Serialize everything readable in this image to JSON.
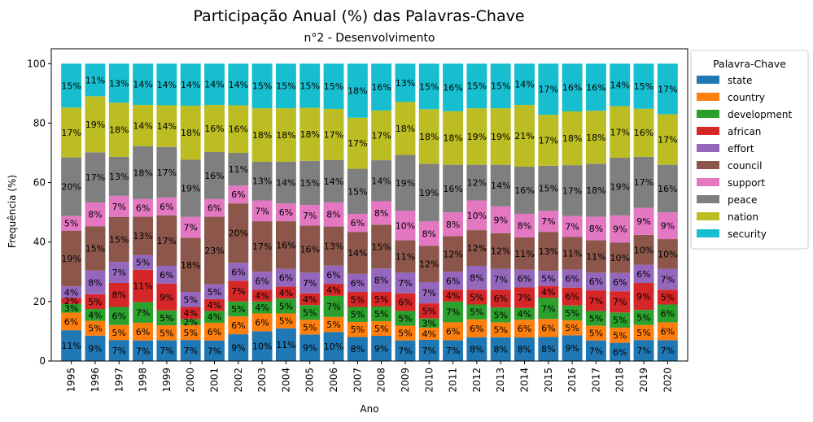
{
  "chart_data": {
    "type": "bar",
    "stacked": true,
    "title": "Participação Anual (%) das Palavras-Chave",
    "subtitle": "n°2 - Desenvolvimento",
    "xlabel": "Ano",
    "ylabel": "Frequência (%)",
    "ylim": [
      0,
      105
    ],
    "yticks": [
      0,
      20,
      40,
      60,
      80,
      100
    ],
    "legend": {
      "title": "Palavra-Chave",
      "placement": "outside-right"
    },
    "categories": [
      "1995",
      "1996",
      "1997",
      "1998",
      "1999",
      "2000",
      "2001",
      "2002",
      "2003",
      "2004",
      "2005",
      "2006",
      "2007",
      "2008",
      "2009",
      "2010",
      "2011",
      "2012",
      "2013",
      "2014",
      "2015",
      "2016",
      "2017",
      "2018",
      "2019",
      "2020"
    ],
    "series": [
      {
        "name": "state",
        "color": "#1f77b4",
        "values": [
          10.5,
          8.6,
          7.0,
          7.0,
          7.0,
          7.0,
          7.0,
          9.0,
          10.0,
          11.0,
          9.0,
          9.6,
          8.0,
          8.6,
          7.0,
          7.0,
          7.0,
          8.0,
          8.0,
          8.0,
          8.0,
          8.6,
          7.0,
          6.0,
          7.0,
          7.0
        ]
      },
      {
        "name": "country",
        "color": "#ff7f0e",
        "values": [
          6,
          5,
          5,
          6,
          5,
          5,
          6,
          6,
          6,
          5,
          5,
          5,
          5,
          5,
          5,
          4,
          6,
          6,
          5,
          6,
          6,
          5,
          5,
          5,
          5,
          6
        ]
      },
      {
        "name": "development",
        "color": "#2ca02c",
        "values": [
          3,
          4,
          6,
          7,
          5,
          2,
          4,
          5,
          4,
          5,
          5,
          7,
          5,
          5,
          5,
          3,
          7,
          5,
          5,
          4,
          7,
          5,
          5,
          5,
          5,
          6
        ]
      },
      {
        "name": "african",
        "color": "#d62728",
        "values": [
          2,
          5,
          8,
          11,
          9,
          4,
          4,
          7,
          4,
          4,
          4,
          4,
          5,
          5,
          6,
          5,
          4,
          5,
          6,
          7,
          4,
          6,
          7,
          7,
          9,
          5
        ]
      },
      {
        "name": "effort",
        "color": "#9467bd",
        "values": [
          4,
          8,
          7,
          5,
          6,
          5,
          5,
          6,
          6,
          6,
          7,
          6,
          6,
          8,
          7,
          7,
          6,
          8,
          7,
          6,
          5,
          6,
          6,
          6,
          6,
          7
        ]
      },
      {
        "name": "council",
        "color": "#8c564b",
        "values": [
          19,
          15,
          15,
          13,
          17,
          18,
          23,
          20,
          17,
          16,
          16,
          13,
          14,
          15,
          11,
          12,
          12,
          12,
          12,
          11,
          13,
          11,
          11,
          10,
          10,
          10
        ]
      },
      {
        "name": "support",
        "color": "#e377c2",
        "values": [
          5,
          8,
          7,
          6,
          6,
          7,
          6,
          6,
          7,
          6,
          7,
          8,
          6,
          8,
          10,
          8,
          8,
          10,
          9,
          8,
          7,
          7,
          8,
          9,
          9,
          9
        ]
      },
      {
        "name": "peace",
        "color": "#7f7f7f",
        "values": [
          20,
          17,
          13,
          18,
          17,
          19,
          16,
          11,
          13,
          14,
          15,
          14,
          15,
          14,
          19,
          19,
          16,
          12,
          14,
          16,
          15,
          17,
          18,
          19,
          17,
          16
        ]
      },
      {
        "name": "nation",
        "color": "#bcbd22",
        "values": [
          17,
          19,
          18,
          14,
          14,
          18,
          16,
          16,
          18,
          18,
          18,
          17,
          17,
          17,
          18,
          18,
          18,
          19,
          19,
          21,
          17,
          18,
          18,
          17,
          16,
          17
        ]
      },
      {
        "name": "security",
        "color": "#17becf",
        "values": [
          15,
          11,
          13,
          14,
          14,
          14,
          14,
          14,
          15,
          15,
          15,
          15,
          18,
          16,
          13,
          15,
          16,
          15,
          15,
          14,
          17,
          16,
          16,
          14,
          15,
          17
        ]
      }
    ]
  }
}
